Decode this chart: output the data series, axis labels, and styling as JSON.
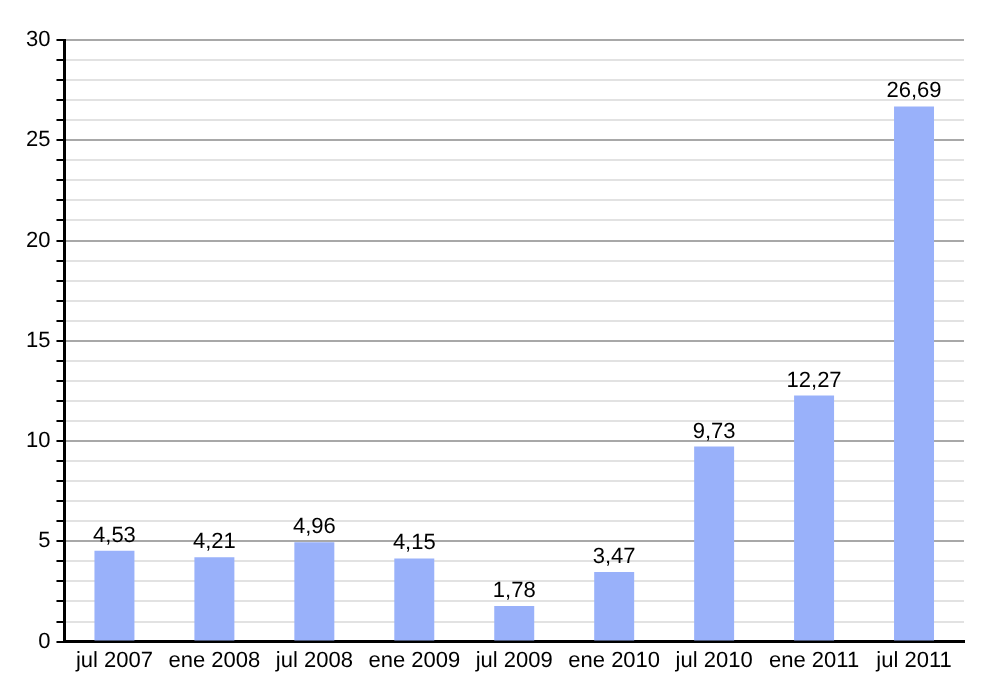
{
  "chart_data": {
    "type": "bar",
    "categories": [
      "jul 2007",
      "ene 2008",
      "jul 2008",
      "ene 2009",
      "jul 2009",
      "ene 2010",
      "jul 2010",
      "ene 2011",
      "jul 2011"
    ],
    "values": [
      4.53,
      4.21,
      4.96,
      4.15,
      1.78,
      3.47,
      9.73,
      12.27,
      26.69
    ],
    "value_labels": [
      "4,53",
      "4,21",
      "4,96",
      "4,15",
      "1,78",
      "3,47",
      "9,73",
      "12,27",
      "26,69"
    ],
    "color": "#99b1fa",
    "ylim": [
      0,
      30
    ],
    "yticks": [
      0,
      {
        "value": 1,
        "label": null
      },
      {
        "value": 2,
        "label": null
      },
      {
        "value": 3,
        "label": null
      },
      {
        "value": 4,
        "label": null
      },
      5,
      {
        "value": 6,
        "label": null
      },
      {
        "value": 7,
        "label": null
      },
      {
        "value": 8,
        "label": null
      },
      {
        "value": 9,
        "label": null
      },
      10,
      {
        "value": 11,
        "label": null
      },
      {
        "value": 12,
        "label": null
      },
      {
        "value": 13,
        "label": null
      },
      {
        "value": 14,
        "label": null
      },
      15,
      {
        "value": 16,
        "label": null
      },
      {
        "value": 17,
        "label": null
      },
      {
        "value": 18,
        "label": null
      },
      {
        "value": 19,
        "label": null
      },
      20,
      {
        "value": 21,
        "label": null
      },
      {
        "value": 22,
        "label": null
      },
      {
        "value": 23,
        "label": null
      },
      {
        "value": 24,
        "label": null
      },
      25,
      {
        "value": 26,
        "label": null
      },
      {
        "value": 27,
        "label": null
      },
      {
        "value": 28,
        "label": null
      },
      {
        "value": 29,
        "label": null
      },
      30
    ],
    "grid": "y",
    "legend": false
  }
}
